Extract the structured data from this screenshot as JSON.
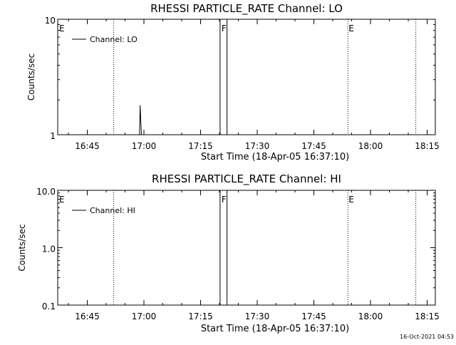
{
  "footer": {
    "timestamp": "16-Oct-2021 04:53"
  },
  "chart_data": [
    {
      "type": "line",
      "title": "RHESSI PARTICLE_RATE Channel: LO",
      "xlabel": "Start Time (18-Apr-05 16:37:10)",
      "ylabel": "Counts/sec",
      "yscale": "log",
      "ylim": [
        1,
        10
      ],
      "xlim": [
        "16:37:10",
        "18:17:10"
      ],
      "x_ticks": [
        "16:45",
        "17:00",
        "17:15",
        "17:30",
        "17:45",
        "18:00",
        "18:15"
      ],
      "y_ticks": [
        "1",
        "10"
      ],
      "legend": {
        "position": "top-left",
        "entries": [
          "Channel: LO"
        ]
      },
      "series": [
        {
          "name": "Channel: LO",
          "x": [
            "16:37:10",
            "16:58:50",
            "16:59:00",
            "16:59:10",
            "16:59:20",
            "16:59:40",
            "17:20:10",
            "17:20:10",
            "17:22:00",
            "17:22:00",
            "18:17:10"
          ],
          "y": [
            null,
            1,
            1.8,
            1.3,
            1.0,
            null,
            null,
            10,
            10,
            null,
            null
          ]
        }
      ],
      "markers": [
        {
          "label": "E",
          "x": "16:37:10",
          "style": "none"
        },
        {
          "label": "",
          "x": "16:52:00",
          "style": "dotted"
        },
        {
          "label": "F",
          "x": "17:20:10",
          "style": "none"
        },
        {
          "label": "E",
          "x": "17:54:00",
          "style": "dotted"
        },
        {
          "label": "",
          "x": "18:12:00",
          "style": "dotted"
        }
      ]
    },
    {
      "type": "line",
      "title": "RHESSI PARTICLE_RATE Channel: HI",
      "xlabel": "Start Time (18-Apr-05 16:37:10)",
      "ylabel": "Counts/sec",
      "yscale": "log",
      "ylim": [
        0.1,
        10
      ],
      "xlim": [
        "16:37:10",
        "18:17:10"
      ],
      "x_ticks": [
        "16:45",
        "17:00",
        "17:15",
        "17:30",
        "17:45",
        "18:00",
        "18:15"
      ],
      "y_ticks": [
        "0.1",
        "1.0",
        "10.0"
      ],
      "legend": {
        "position": "top-left",
        "entries": [
          "Channel: HI"
        ]
      },
      "series": [
        {
          "name": "Channel: HI",
          "x": [
            "16:37:10",
            "17:20:10",
            "17:20:10",
            "17:22:00",
            "17:22:00",
            "18:17:10"
          ],
          "y": [
            null,
            null,
            10,
            10,
            null,
            null
          ]
        }
      ],
      "markers": [
        {
          "label": "E",
          "x": "16:37:10",
          "style": "none"
        },
        {
          "label": "",
          "x": "16:52:00",
          "style": "dotted"
        },
        {
          "label": "F",
          "x": "17:20:10",
          "style": "none"
        },
        {
          "label": "E",
          "x": "17:54:00",
          "style": "dotted"
        },
        {
          "label": "",
          "x": "18:12:00",
          "style": "dotted"
        }
      ]
    }
  ]
}
